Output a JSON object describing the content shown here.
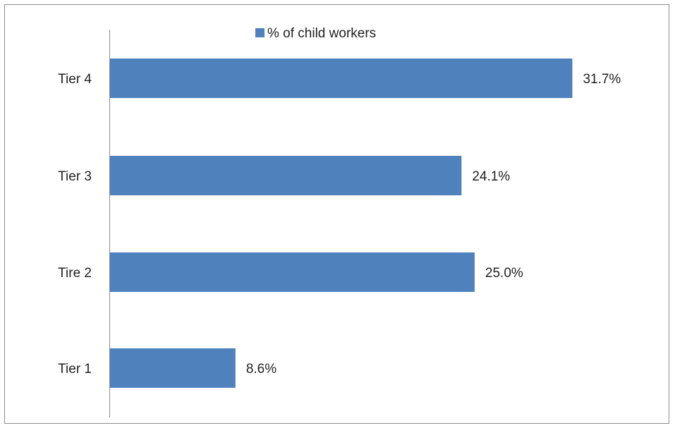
{
  "chart_data": {
    "type": "bar",
    "orientation": "horizontal",
    "categories": [
      "Tier 4",
      "Tier 3",
      "Tire 2",
      "Tier 1"
    ],
    "series": [
      {
        "name": "% of child workers",
        "values": [
          31.7,
          24.1,
          25.0,
          8.6
        ],
        "value_labels": [
          "31.7%",
          "24.1%",
          "25.0%",
          "8.6%"
        ],
        "color": "#4f81bd"
      }
    ],
    "xlim": [
      0,
      32.5
    ],
    "grid": false,
    "legend_position": "top"
  }
}
